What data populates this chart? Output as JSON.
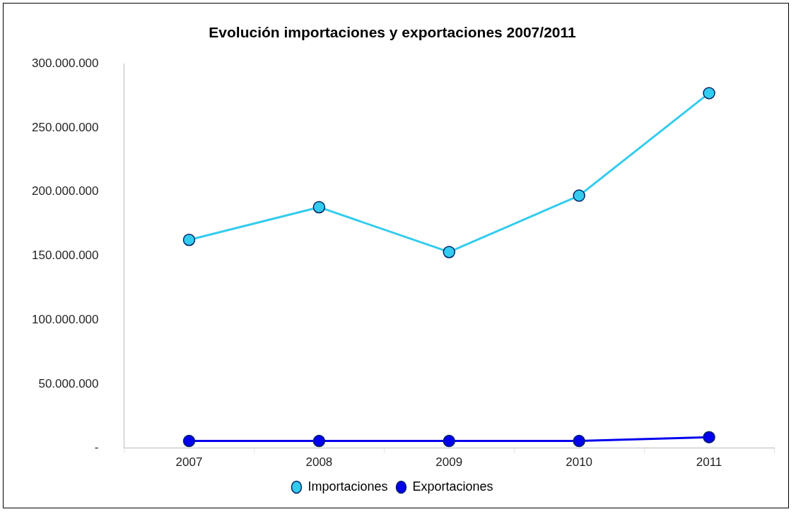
{
  "chart_data": {
    "type": "line",
    "title": "Evolución importaciones y exportaciones 2007/2011",
    "categories": [
      "2007",
      "2008",
      "2009",
      "2010",
      "2011"
    ],
    "series": [
      {
        "name": "Importaciones",
        "color": "#33ccee",
        "values": [
          162500000,
          188000000,
          153000000,
          197000000,
          277000000
        ]
      },
      {
        "name": "Exportaciones",
        "color": "#0000ee",
        "values": [
          5500000,
          5500000,
          5500000,
          5500000,
          8500000
        ]
      }
    ],
    "ylim": [
      0,
      300000000
    ],
    "yticks": [
      {
        "value": 0,
        "label": "-"
      },
      {
        "value": 50000000,
        "label": "50.000.000"
      },
      {
        "value": 100000000,
        "label": "100.000.000"
      },
      {
        "value": 150000000,
        "label": "150.000.000"
      },
      {
        "value": 200000000,
        "label": "200.000.000"
      },
      {
        "value": 250000000,
        "label": "250.000.000"
      },
      {
        "value": 300000000,
        "label": "300.000.000"
      }
    ],
    "grid": false,
    "legend": "bottom",
    "marker": "circle",
    "line_style": "solid"
  }
}
